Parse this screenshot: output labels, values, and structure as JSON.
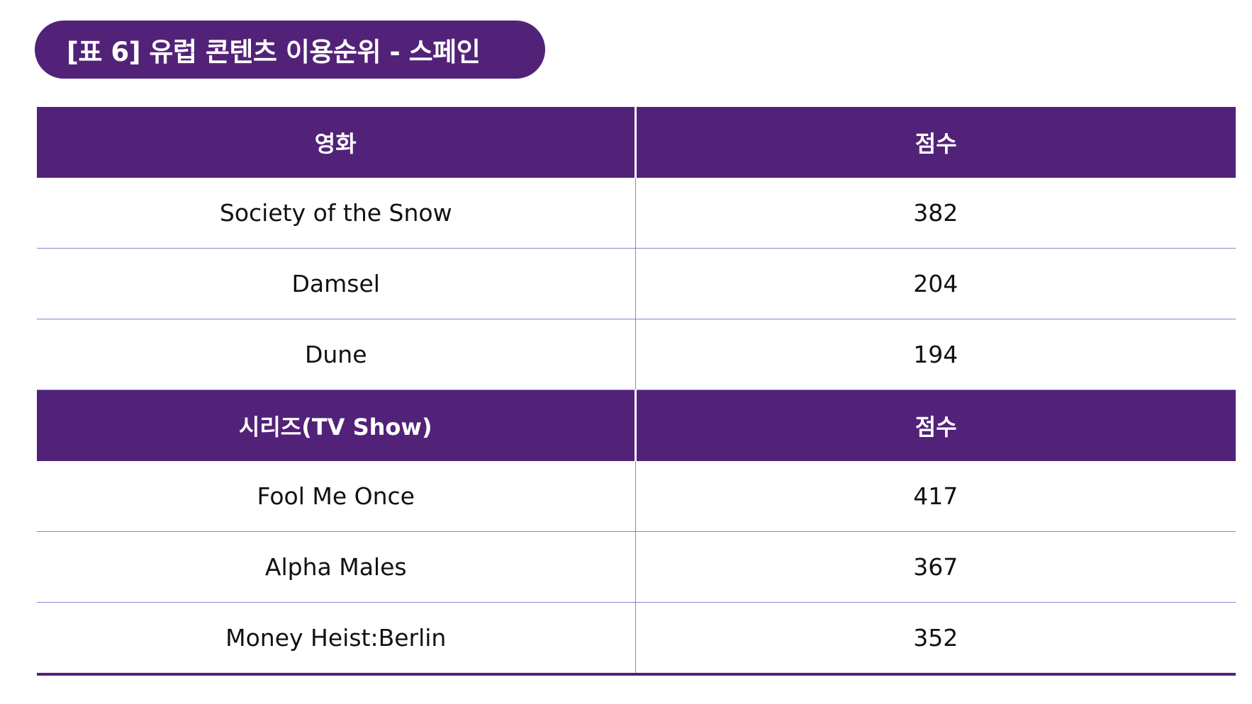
{
  "title": "[표 6] 유럽 콘텐츠 이용순위 - 스페인",
  "table": {
    "movies": {
      "header": [
        "영화",
        "점수"
      ],
      "rows": [
        [
          "Society of the Snow",
          "382"
        ],
        [
          "Damsel",
          "204"
        ],
        [
          "Dune",
          "194"
        ]
      ]
    },
    "series": {
      "header": [
        "시리즈(TV Show)",
        "점수"
      ],
      "rows": [
        [
          "Fool Me Once",
          "417"
        ],
        [
          "Alpha Males",
          "367"
        ],
        [
          "Money Heist:Berlin",
          "352"
        ]
      ]
    }
  },
  "colors": {
    "accent": "#522279",
    "divider": "#8a82cf",
    "text": "#111111"
  }
}
